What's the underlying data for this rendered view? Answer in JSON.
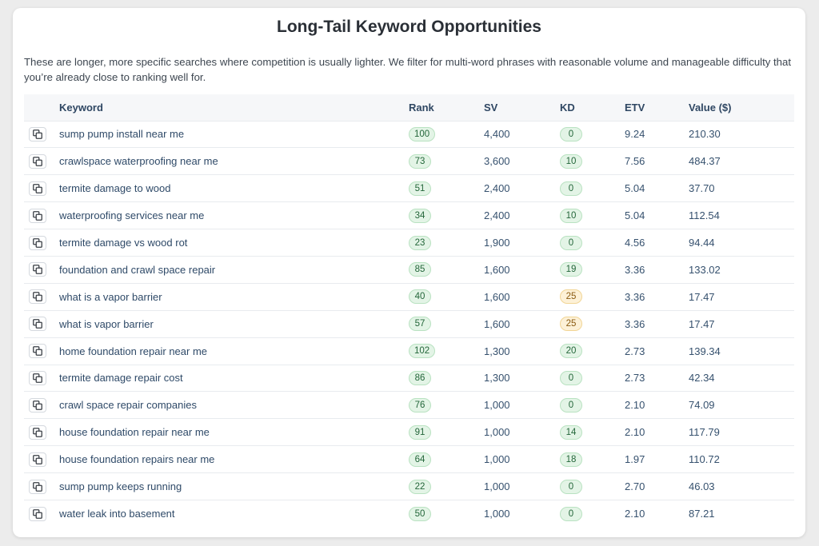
{
  "title": "Long-Tail Keyword Opportunities",
  "description": "These are longer, more specific searches where competition is usually lighter. We filter for multi-word phrases with reasonable volume and manageable difficulty that you’re already close to ranking well for.",
  "columns": {
    "keyword": "Keyword",
    "rank": "Rank",
    "sv": "SV",
    "kd": "KD",
    "etv": "ETV",
    "value": "Value ($)"
  },
  "colors": {
    "pill_green_bg": "#e3f4e6",
    "pill_yellow_bg": "#fdf1d7"
  },
  "rows": [
    {
      "keyword": "sump pump install near me",
      "rank": "100",
      "sv": "4,400",
      "kd": "0",
      "etv": "9.24",
      "value": "210.30",
      "kd_level": "low"
    },
    {
      "keyword": "crawlspace waterproofing near me",
      "rank": "73",
      "sv": "3,600",
      "kd": "10",
      "etv": "7.56",
      "value": "484.37",
      "kd_level": "low"
    },
    {
      "keyword": "termite damage to wood",
      "rank": "51",
      "sv": "2,400",
      "kd": "0",
      "etv": "5.04",
      "value": "37.70",
      "kd_level": "low"
    },
    {
      "keyword": "waterproofing services near me",
      "rank": "34",
      "sv": "2,400",
      "kd": "10",
      "etv": "5.04",
      "value": "112.54",
      "kd_level": "low"
    },
    {
      "keyword": "termite damage vs wood rot",
      "rank": "23",
      "sv": "1,900",
      "kd": "0",
      "etv": "4.56",
      "value": "94.44",
      "kd_level": "low"
    },
    {
      "keyword": "foundation and crawl space repair",
      "rank": "85",
      "sv": "1,600",
      "kd": "19",
      "etv": "3.36",
      "value": "133.02",
      "kd_level": "low"
    },
    {
      "keyword": "what is a vapor barrier",
      "rank": "40",
      "sv": "1,600",
      "kd": "25",
      "etv": "3.36",
      "value": "17.47",
      "kd_level": "medium"
    },
    {
      "keyword": "what is vapor barrier",
      "rank": "57",
      "sv": "1,600",
      "kd": "25",
      "etv": "3.36",
      "value": "17.47",
      "kd_level": "medium"
    },
    {
      "keyword": "home foundation repair near me",
      "rank": "102",
      "sv": "1,300",
      "kd": "20",
      "etv": "2.73",
      "value": "139.34",
      "kd_level": "low"
    },
    {
      "keyword": "termite damage repair cost",
      "rank": "86",
      "sv": "1,300",
      "kd": "0",
      "etv": "2.73",
      "value": "42.34",
      "kd_level": "low"
    },
    {
      "keyword": "crawl space repair companies",
      "rank": "76",
      "sv": "1,000",
      "kd": "0",
      "etv": "2.10",
      "value": "74.09",
      "kd_level": "low"
    },
    {
      "keyword": "house foundation repair near me",
      "rank": "91",
      "sv": "1,000",
      "kd": "14",
      "etv": "2.10",
      "value": "117.79",
      "kd_level": "low"
    },
    {
      "keyword": "house foundation repairs near me",
      "rank": "64",
      "sv": "1,000",
      "kd": "18",
      "etv": "1.97",
      "value": "110.72",
      "kd_level": "low"
    },
    {
      "keyword": "sump pump keeps running",
      "rank": "22",
      "sv": "1,000",
      "kd": "0",
      "etv": "2.70",
      "value": "46.03",
      "kd_level": "low"
    },
    {
      "keyword": "water leak into basement",
      "rank": "50",
      "sv": "1,000",
      "kd": "0",
      "etv": "2.10",
      "value": "87.21",
      "kd_level": "low"
    }
  ]
}
